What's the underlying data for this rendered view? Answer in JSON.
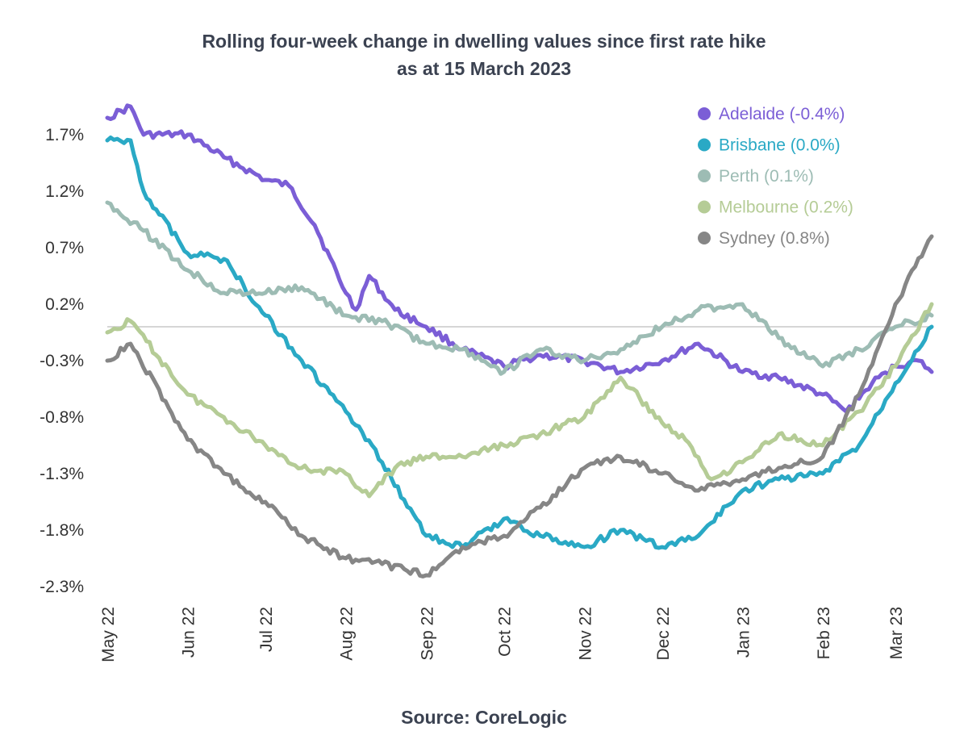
{
  "chart_data": {
    "type": "line",
    "title": "Rolling four-week change in dwelling values since first rate hike",
    "subtitle": "as at 15 March 2023",
    "source": "Source: CoreLogic",
    "xlabel": "",
    "ylabel": "",
    "y_ticks": [
      "1.7%",
      "1.2%",
      "0.7%",
      "0.2%",
      "-0.3%",
      "-0.8%",
      "-1.3%",
      "-1.8%",
      "-2.3%"
    ],
    "y_tick_values": [
      1.7,
      1.2,
      0.7,
      0.2,
      -0.3,
      -0.8,
      -1.3,
      -1.8,
      -2.3
    ],
    "ylim": [
      -2.3,
      1.9
    ],
    "x_ticks": [
      "May 22",
      "Jun 22",
      "Jul 22",
      "Aug 22",
      "Sep 22",
      "Oct 22",
      "Nov 22",
      "Dec 22",
      "Jan 23",
      "Feb 23",
      "Mar 23"
    ],
    "x_tick_dates": [
      "2022-05-01",
      "2022-06-01",
      "2022-07-01",
      "2022-08-01",
      "2022-09-01",
      "2022-10-01",
      "2022-11-01",
      "2022-12-01",
      "2023-01-01",
      "2023-02-01",
      "2023-03-01"
    ],
    "xlim": [
      "2022-05-01",
      "2023-03-15"
    ],
    "zero_line": 0,
    "grid": false,
    "legend_position": "top-right",
    "series": [
      {
        "name": "Adelaide (-0.4%)",
        "color": "#7b5ed6",
        "x": [
          "2022-05-01",
          "2022-05-10",
          "2022-05-15",
          "2022-06-01",
          "2022-06-15",
          "2022-07-01",
          "2022-07-10",
          "2022-07-20",
          "2022-08-01",
          "2022-08-05",
          "2022-08-10",
          "2022-08-20",
          "2022-09-01",
          "2022-09-15",
          "2022-10-01",
          "2022-10-15",
          "2022-11-01",
          "2022-11-15",
          "2022-12-01",
          "2022-12-15",
          "2023-01-01",
          "2023-01-15",
          "2023-02-01",
          "2023-02-10",
          "2023-02-20",
          "2023-03-01",
          "2023-03-10",
          "2023-03-15"
        ],
        "y": [
          1.85,
          1.95,
          1.7,
          1.7,
          1.5,
          1.3,
          1.25,
          0.9,
          0.3,
          0.15,
          0.45,
          0.15,
          0.0,
          -0.2,
          -0.35,
          -0.25,
          -0.3,
          -0.4,
          -0.3,
          -0.15,
          -0.4,
          -0.45,
          -0.6,
          -0.75,
          -0.5,
          -0.35,
          -0.3,
          -0.4
        ]
      },
      {
        "name": "Brisbane (0.0%)",
        "color": "#2aa9c5",
        "x": [
          "2022-05-01",
          "2022-05-10",
          "2022-05-15",
          "2022-06-01",
          "2022-06-15",
          "2022-07-01",
          "2022-07-15",
          "2022-08-01",
          "2022-08-15",
          "2022-09-01",
          "2022-09-15",
          "2022-10-01",
          "2022-10-15",
          "2022-11-01",
          "2022-11-15",
          "2022-12-01",
          "2022-12-15",
          "2023-01-01",
          "2023-01-15",
          "2023-02-01",
          "2023-02-15",
          "2023-03-01",
          "2023-03-15"
        ],
        "y": [
          1.65,
          1.65,
          1.2,
          0.65,
          0.6,
          0.1,
          -0.3,
          -0.75,
          -1.2,
          -1.85,
          -1.95,
          -1.7,
          -1.85,
          -1.95,
          -1.8,
          -1.95,
          -1.85,
          -1.45,
          -1.35,
          -1.3,
          -1.05,
          -0.5,
          0.0
        ]
      },
      {
        "name": "Perth (0.1%)",
        "color": "#9dbcb4",
        "x": [
          "2022-05-01",
          "2022-05-15",
          "2022-06-01",
          "2022-06-15",
          "2022-07-01",
          "2022-07-15",
          "2022-08-01",
          "2022-08-15",
          "2022-09-01",
          "2022-09-15",
          "2022-10-01",
          "2022-10-15",
          "2022-11-01",
          "2022-11-15",
          "2022-12-01",
          "2022-12-15",
          "2023-01-01",
          "2023-01-15",
          "2023-02-01",
          "2023-02-15",
          "2023-03-01",
          "2023-03-15"
        ],
        "y": [
          1.1,
          0.85,
          0.5,
          0.3,
          0.3,
          0.35,
          0.1,
          0.05,
          -0.15,
          -0.2,
          -0.4,
          -0.2,
          -0.3,
          -0.2,
          0.0,
          0.15,
          0.2,
          -0.1,
          -0.35,
          -0.2,
          0.0,
          0.1
        ]
      },
      {
        "name": "Melbourne (0.2%)",
        "color": "#b5cc96",
        "x": [
          "2022-05-01",
          "2022-05-10",
          "2022-06-01",
          "2022-06-15",
          "2022-07-01",
          "2022-07-15",
          "2022-08-01",
          "2022-08-10",
          "2022-08-20",
          "2022-09-01",
          "2022-09-15",
          "2022-10-01",
          "2022-10-15",
          "2022-11-01",
          "2022-11-15",
          "2022-12-01",
          "2022-12-10",
          "2022-12-20",
          "2023-01-01",
          "2023-01-15",
          "2023-02-01",
          "2023-02-15",
          "2023-03-01",
          "2023-03-15"
        ],
        "y": [
          -0.05,
          0.05,
          -0.6,
          -0.8,
          -1.05,
          -1.25,
          -1.3,
          -1.5,
          -1.25,
          -1.15,
          -1.15,
          -1.05,
          -0.95,
          -0.8,
          -0.45,
          -0.85,
          -1.0,
          -1.35,
          -1.2,
          -0.95,
          -1.05,
          -0.75,
          -0.35,
          0.2
        ]
      },
      {
        "name": "Sydney (0.8%)",
        "color": "#868686",
        "x": [
          "2022-05-01",
          "2022-05-10",
          "2022-06-01",
          "2022-06-15",
          "2022-07-01",
          "2022-07-15",
          "2022-08-01",
          "2022-08-15",
          "2022-09-01",
          "2022-09-15",
          "2022-10-01",
          "2022-10-15",
          "2022-11-01",
          "2022-11-15",
          "2022-12-01",
          "2022-12-15",
          "2023-01-01",
          "2023-01-15",
          "2023-02-01",
          "2023-02-15",
          "2023-03-01",
          "2023-03-15"
        ],
        "y": [
          -0.3,
          -0.15,
          -1.0,
          -1.3,
          -1.55,
          -1.85,
          -2.05,
          -2.1,
          -2.2,
          -1.95,
          -1.85,
          -1.6,
          -1.25,
          -1.15,
          -1.3,
          -1.45,
          -1.35,
          -1.25,
          -1.15,
          -0.6,
          0.2,
          0.8
        ]
      }
    ]
  }
}
